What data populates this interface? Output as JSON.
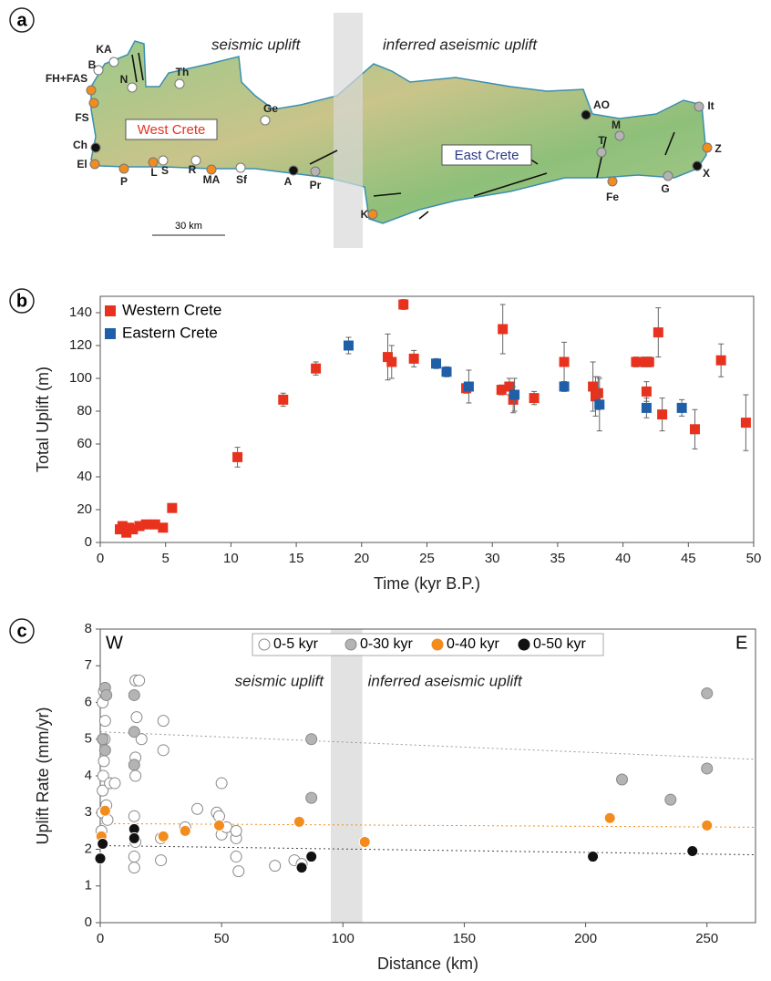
{
  "map": {
    "panel_label": "a",
    "top_left_text": "seismic uplift",
    "top_right_text": "inferred aseismic uplift",
    "region_west": "West Crete",
    "region_east": "East Crete",
    "scale_label": "30 km",
    "sites": [
      "KA",
      "B",
      "FH+FAS",
      "N",
      "Th",
      "FS",
      "Ge",
      "AO",
      "It",
      "M",
      "T",
      "Z",
      "X",
      "G",
      "Fe",
      "K",
      "Pr",
      "A",
      "Sf",
      "MA",
      "R",
      "S",
      "L",
      "P",
      "El",
      "Ch"
    ]
  },
  "chart_data": [
    {
      "type": "scatter",
      "panel_label": "b",
      "x_label": "Time (kyr B.P.)",
      "y_label": "Total Uplift (m)",
      "xlim": [
        0,
        50
      ],
      "ylim": [
        0,
        150
      ],
      "xticks": [
        0,
        5,
        10,
        15,
        20,
        25,
        30,
        35,
        40,
        45,
        50
      ],
      "yticks": [
        0,
        20,
        40,
        60,
        80,
        100,
        120,
        140
      ],
      "marker": "square",
      "legend": "upper left",
      "series": [
        {
          "name": "Western Crete",
          "color": "#e8321e",
          "edgecolor": "#e8321e",
          "x": [
            1.5,
            1.7,
            2,
            2.2,
            2.5,
            3,
            3.5,
            4.2,
            4.8,
            5.5,
            10.5,
            14,
            16.5,
            22,
            22.3,
            23.2,
            24,
            28,
            30.7,
            30.8,
            31.3,
            31.6,
            33.2,
            35.5,
            37.7,
            37.9,
            38.1,
            41,
            41.6,
            42,
            42.7,
            41.8,
            43,
            45.5,
            47.5,
            49.4
          ],
          "values": [
            8,
            10,
            6,
            9,
            8,
            10,
            11,
            11,
            9,
            21,
            52,
            87,
            106,
            113,
            110,
            145,
            112,
            94,
            93,
            130,
            95,
            87,
            88,
            110,
            95,
            89,
            91,
            110,
            110,
            110,
            128,
            92,
            78,
            69,
            111,
            73
          ],
          "yerr": [
            1,
            1,
            1,
            1,
            1,
            1,
            1,
            1,
            1,
            1,
            6,
            4,
            4,
            14,
            10,
            3,
            5,
            3,
            3,
            15,
            5,
            8,
            4,
            12,
            15,
            12,
            10,
            3,
            3,
            3,
            15,
            6,
            10,
            12,
            10,
            17
          ]
        },
        {
          "name": "Eastern Crete",
          "color": "#1f5fa8",
          "edgecolor": "#1f5fa8",
          "x": [
            19,
            25.7,
            26.5,
            28.2,
            31.7,
            35.5,
            38.2,
            41.8,
            44.5
          ],
          "values": [
            120,
            109,
            104,
            95,
            90,
            95,
            84,
            82,
            82
          ],
          "yerr": [
            5,
            3,
            3,
            10,
            10,
            3,
            16,
            6,
            5
          ]
        }
      ]
    },
    {
      "type": "scatter",
      "panel_label": "c",
      "x_label": "Distance (km)",
      "y_label": "Uplift Rate (mm/yr)",
      "xlim": [
        0,
        270
      ],
      "ylim": [
        0,
        8
      ],
      "xticks": [
        0,
        50,
        100,
        150,
        200,
        250
      ],
      "yticks": [
        0,
        1,
        2,
        3,
        4,
        5,
        6,
        7,
        8
      ],
      "marker": "circle",
      "legend": "upper center",
      "west_label": "W",
      "east_label": "E",
      "left_zone_label": "seismic uplift",
      "right_zone_label": "inferred aseismic uplift",
      "shaded_band": [
        95,
        108
      ],
      "series": [
        {
          "name": "0-5 kyr",
          "color": "#ffffff",
          "edgecolor": "#888888",
          "x": [
            0.5,
            0.8,
            1,
            1.2,
            1.5,
            1.8,
            2,
            1,
            1.5,
            2.5,
            3,
            4,
            6,
            14,
            14,
            14.5,
            14,
            14.5,
            14.5,
            15,
            14.5,
            16,
            17,
            25,
            25,
            26,
            26,
            35,
            40,
            48,
            49,
            50,
            50,
            52,
            56,
            56,
            56,
            57,
            72,
            80,
            83
          ],
          "values": [
            2.5,
            3,
            3.6,
            4,
            4.4,
            5,
            5.5,
            6,
            6.3,
            3.2,
            2.8,
            3.8,
            3.8,
            1.5,
            1.8,
            2.2,
            2.9,
            4,
            4.5,
            5.6,
            6.6,
            6.6,
            5,
            1.7,
            2.3,
            4.7,
            5.5,
            2.6,
            3.1,
            3,
            2.9,
            3.8,
            2.4,
            2.6,
            1.8,
            2.3,
            2.5,
            1.4,
            1.55,
            1.7,
            1.6
          ]
        },
        {
          "name": "0-30 kyr",
          "color": "#b4b4b4",
          "edgecolor": "#888888",
          "x": [
            1,
            2,
            2.5,
            2,
            14,
            14,
            14,
            87,
            87,
            215,
            235,
            250,
            250
          ],
          "values": [
            5,
            6.4,
            6.2,
            4.7,
            6.2,
            5.2,
            4.3,
            5,
            3.4,
            3.9,
            3.35,
            6.25,
            4.2
          ]
        },
        {
          "name": "0-40 kyr",
          "color": "#f28c1e",
          "edgecolor": "#ffffff",
          "x": [
            0.5,
            2,
            14,
            26,
            35,
            49,
            82,
            109,
            210,
            250
          ],
          "values": [
            2.35,
            3.05,
            2.5,
            2.35,
            2.5,
            2.65,
            2.75,
            2.2,
            2.85,
            2.65
          ]
        },
        {
          "name": "0-50 kyr",
          "color": "#111111",
          "edgecolor": "#ffffff",
          "x": [
            0,
            1,
            14,
            14,
            83,
            87,
            203,
            244
          ],
          "values": [
            1.75,
            2.15,
            2.55,
            2.3,
            1.5,
            1.8,
            1.8,
            1.95
          ]
        }
      ],
      "trend_lines": [
        {
          "color": "#999999",
          "x": [
            0,
            270
          ],
          "values": [
            5.2,
            4.45
          ]
        },
        {
          "color": "#f28c1e",
          "x": [
            0,
            270
          ],
          "values": [
            2.7,
            2.6
          ]
        },
        {
          "color": "#444444",
          "x": [
            0,
            270
          ],
          "values": [
            2.1,
            1.85
          ]
        }
      ]
    }
  ]
}
